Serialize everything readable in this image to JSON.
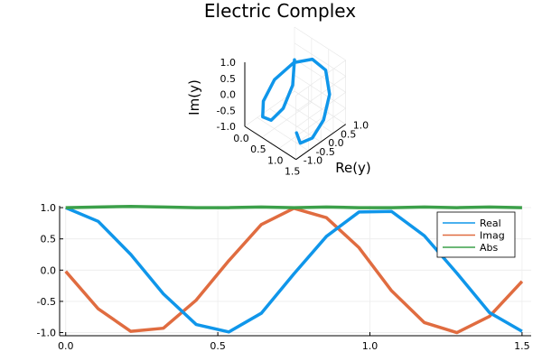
{
  "title": "Electric Complex",
  "chart_data": [
    {
      "type": "line3d",
      "title": "Electric Complex",
      "xlabel": "",
      "ylabel": "Re(y)",
      "zlabel": "Im(y)",
      "x_ticks": [
        "0.0",
        "0.5",
        "1.0",
        "1.5"
      ],
      "y_ticks": [
        "-1.0",
        "-0.5",
        "0.0",
        "0.5",
        "1.0"
      ],
      "z_ticks": [
        "-1.0",
        "-0.5",
        "0.0",
        "0.5",
        "1.0"
      ],
      "xlim": [
        0,
        1.5
      ],
      "ylim": [
        -1,
        1
      ],
      "zlim": [
        -1,
        1
      ],
      "color": "#0f96ea",
      "series": {
        "x": [
          0.0,
          0.107,
          0.214,
          0.321,
          0.429,
          0.536,
          0.643,
          0.75,
          0.857,
          0.964,
          1.071,
          1.179,
          1.286,
          1.393,
          1.5
        ],
        "y": [
          1.0,
          0.78,
          0.25,
          -0.38,
          -0.87,
          -0.99,
          -0.69,
          -0.06,
          0.54,
          0.93,
          0.94,
          0.55,
          -0.05,
          -0.68,
          -0.98
        ],
        "z": [
          -0.02,
          -0.62,
          -0.98,
          -0.93,
          -0.48,
          0.15,
          0.73,
          0.99,
          0.84,
          0.36,
          -0.33,
          -0.84,
          -1.0,
          -0.74,
          -0.18
        ]
      }
    },
    {
      "type": "line",
      "x_ticks": [
        "0.0",
        "0.5",
        "1.0",
        "1.5"
      ],
      "y_ticks": [
        "-1.0",
        "-0.5",
        "0.0",
        "0.5",
        "1.0"
      ],
      "xlim": [
        -0.02,
        1.53
      ],
      "ylim": [
        -1.05,
        1.03
      ],
      "grid": true,
      "legend_position": "top-right",
      "x": [
        0.0,
        0.107,
        0.214,
        0.321,
        0.429,
        0.536,
        0.643,
        0.75,
        0.857,
        0.964,
        1.071,
        1.179,
        1.286,
        1.393,
        1.5
      ],
      "series": [
        {
          "name": "Real",
          "color": "#0f96ea",
          "values": [
            1.0,
            0.78,
            0.25,
            -0.38,
            -0.87,
            -0.99,
            -0.69,
            -0.06,
            0.54,
            0.93,
            0.94,
            0.55,
            -0.05,
            -0.68,
            -0.98
          ]
        },
        {
          "name": "Imag",
          "color": "#e06c40",
          "values": [
            -0.02,
            -0.62,
            -0.98,
            -0.93,
            -0.48,
            0.15,
            0.73,
            0.99,
            0.84,
            0.36,
            -0.33,
            -0.84,
            -1.0,
            -0.74,
            -0.18
          ]
        },
        {
          "name": "Abs",
          "color": "#3ca04a",
          "values": [
            1.0,
            1.01,
            1.02,
            1.01,
            1.0,
            1.0,
            1.01,
            1.0,
            1.01,
            1.0,
            1.0,
            1.01,
            1.0,
            1.01,
            1.0
          ]
        }
      ]
    }
  ]
}
